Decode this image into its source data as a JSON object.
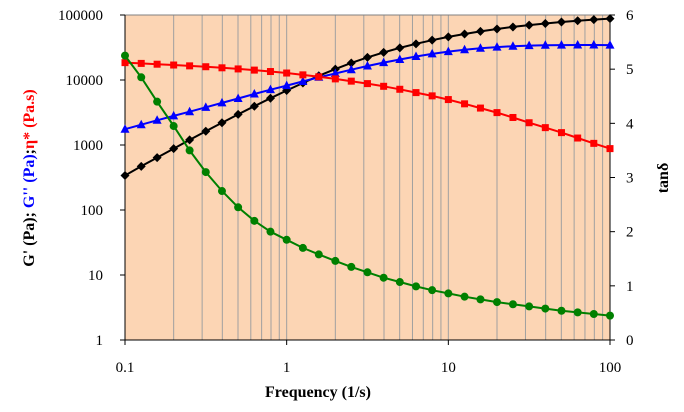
{
  "chart_data": {
    "type": "line",
    "title": "",
    "xlabel": "Frequency (1/s)",
    "x_scale": "log",
    "xlim": [
      0.1,
      100
    ],
    "x_ticks": [
      "0.1",
      "1",
      "10",
      "100"
    ],
    "left_axis": {
      "label_parts": [
        {
          "text": "G' (Pa); ",
          "color": "#000000"
        },
        {
          "text": "G'' (Pa)",
          "color": "#0000ff"
        },
        {
          "text": ";",
          "color": "#000000"
        },
        {
          "text": "η* (Pa.s)",
          "color": "#ff0000"
        }
      ],
      "scale": "log",
      "lim": [
        1,
        100000
      ],
      "ticks": [
        "1",
        "10",
        "100",
        "1000",
        "10000",
        "100000"
      ]
    },
    "right_axis": {
      "label": "tanδ",
      "label_color": "#008000",
      "scale": "linear",
      "lim": [
        0,
        6
      ],
      "ticks": [
        "0",
        "1",
        "2",
        "3",
        "4",
        "5",
        "6"
      ]
    },
    "grid": true,
    "plot_background": "#fcd5b4",
    "x": [
      0.1,
      0.126,
      0.158,
      0.2,
      0.251,
      0.316,
      0.398,
      0.501,
      0.631,
      0.794,
      1,
      1.26,
      1.58,
      2,
      2.51,
      3.16,
      3.98,
      5.01,
      6.31,
      7.94,
      10,
      12.6,
      15.8,
      20,
      25.1,
      31.6,
      39.8,
      50.1,
      63.1,
      79.4,
      100
    ],
    "series": [
      {
        "axis": "left",
        "color": "#000000",
        "marker": "diamond",
        "values": [
          340,
          470,
          640,
          880,
          1200,
          1630,
          2200,
          2960,
          3950,
          5250,
          6900,
          9000,
          11600,
          14700,
          18300,
          22300,
          26600,
          31200,
          36000,
          41000,
          46000,
          51000,
          56000,
          61000,
          65500,
          70000,
          74000,
          78000,
          81500,
          85000,
          88000
        ]
      },
      {
        "axis": "left",
        "color": "#0000ff",
        "marker": "triangle",
        "values": [
          1750,
          2050,
          2400,
          2800,
          3250,
          3800,
          4450,
          5200,
          6100,
          7100,
          8200,
          9500,
          11000,
          12600,
          14400,
          16400,
          18500,
          20700,
          23000,
          25200,
          27300,
          29200,
          30800,
          32100,
          33100,
          33800,
          34200,
          34400,
          34500,
          34500,
          34400
        ]
      },
      {
        "axis": "left",
        "color": "#ff0000",
        "marker": "square",
        "values": [
          18500,
          18000,
          17500,
          17000,
          16500,
          16000,
          15400,
          14800,
          14200,
          13500,
          12800,
          12000,
          11200,
          10400,
          9600,
          8800,
          8000,
          7200,
          6400,
          5700,
          5000,
          4300,
          3700,
          3150,
          2650,
          2200,
          1850,
          1550,
          1280,
          1060,
          880
        ]
      },
      {
        "axis": "right",
        "color": "#008000",
        "marker": "circle",
        "values": [
          5.25,
          4.85,
          4.4,
          3.95,
          3.5,
          3.1,
          2.75,
          2.45,
          2.2,
          2.0,
          1.85,
          1.7,
          1.58,
          1.46,
          1.35,
          1.25,
          1.15,
          1.07,
          0.99,
          0.92,
          0.86,
          0.8,
          0.75,
          0.7,
          0.66,
          0.62,
          0.58,
          0.54,
          0.51,
          0.48,
          0.45
        ]
      }
    ]
  }
}
